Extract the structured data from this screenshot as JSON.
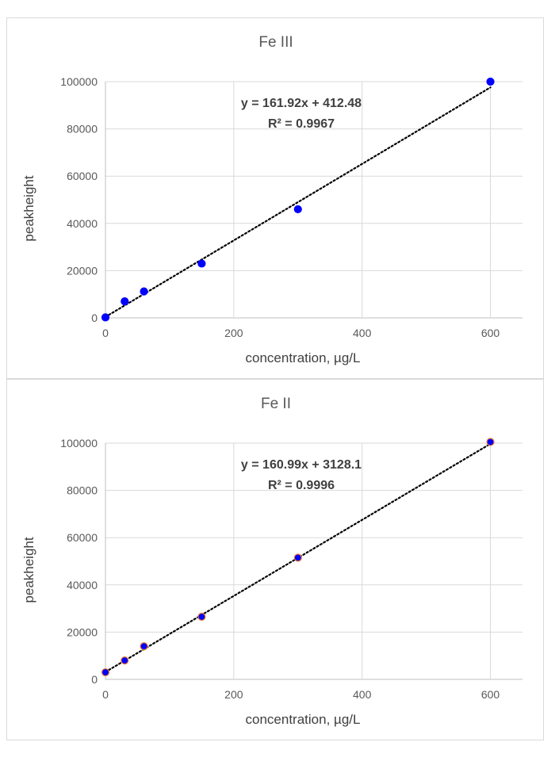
{
  "chart_data": [
    {
      "type": "scatter",
      "title": "Fe III",
      "xlabel": "concentration, µg/L",
      "ylabel": "peakheight",
      "xlim": [
        0,
        650
      ],
      "ylim": [
        0,
        100000
      ],
      "xticks": [
        0,
        200,
        400,
        600
      ],
      "xtick_labels": [
        "0",
        "200",
        "400",
        "600"
      ],
      "yticks": [
        0,
        20000,
        40000,
        60000,
        80000,
        100000
      ],
      "ytick_labels": [
        "0",
        "20000",
        "40000",
        "60000",
        "80000",
        "100000"
      ],
      "grid": true,
      "series": [
        {
          "x": [
            0,
            30,
            60,
            150,
            300,
            600
          ],
          "y": [
            200,
            7000,
            11200,
            23000,
            46000,
            100000
          ],
          "marker_color": "#0000ff",
          "marker_edge": "#0000ff"
        }
      ],
      "trendline": {
        "type": "linear",
        "slope": 161.92,
        "intercept": 412.48,
        "x_range": [
          0,
          600
        ],
        "style": "dotted",
        "color": "#000000",
        "equation": "y = 161.92x + 412.48",
        "r2_label": "R² = 0.9967"
      }
    },
    {
      "type": "scatter",
      "title": "Fe II",
      "xlabel": "concentration, µg/L",
      "ylabel": "peakheight",
      "xlim": [
        0,
        650
      ],
      "ylim": [
        0,
        100000
      ],
      "xticks": [
        0,
        200,
        400,
        600
      ],
      "xtick_labels": [
        "0",
        "200",
        "400",
        "600"
      ],
      "yticks": [
        0,
        20000,
        40000,
        60000,
        80000,
        100000
      ],
      "ytick_labels": [
        "0",
        "20000",
        "40000",
        "60000",
        "80000",
        "100000"
      ],
      "grid": true,
      "series": [
        {
          "x": [
            0,
            30,
            60,
            150,
            300,
            600
          ],
          "y": [
            3000,
            8000,
            14000,
            26500,
            51500,
            100500
          ],
          "marker_color": "#0000ff",
          "marker_edge": "#ed7d31"
        }
      ],
      "trendline": {
        "type": "linear",
        "slope": 160.99,
        "intercept": 3128.1,
        "x_range": [
          0,
          600
        ],
        "style": "dotted",
        "color": "#000000",
        "equation": "y = 160.99x + 3128.1",
        "r2_label": "R² = 0.9996"
      }
    }
  ]
}
